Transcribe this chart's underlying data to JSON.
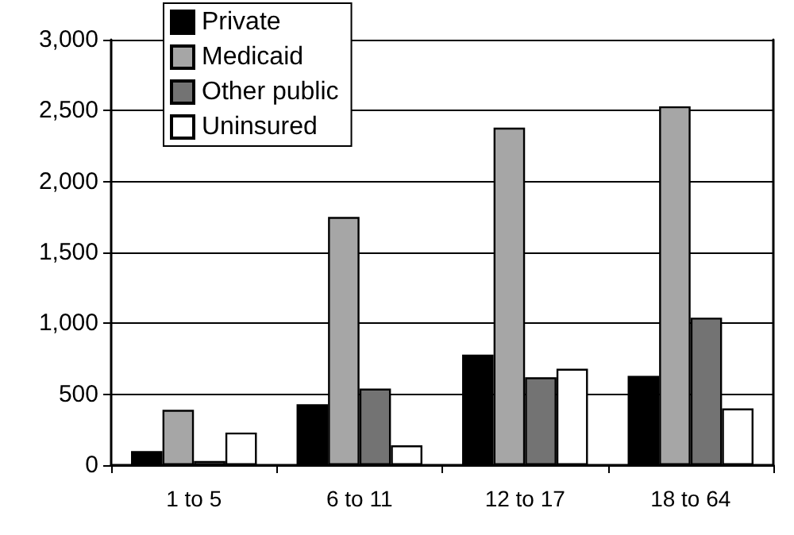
{
  "chart_data": {
    "type": "bar",
    "categories": [
      "1 to 5",
      "6 to 11",
      "12 to 17",
      "18 to 64"
    ],
    "series": [
      {
        "name": "Private",
        "color": "#000000",
        "values": [
          100,
          430,
          780,
          630
        ]
      },
      {
        "name": "Medicaid",
        "color": "#a6a6a6",
        "values": [
          390,
          1750,
          2380,
          2530
        ]
      },
      {
        "name": "Other public",
        "color": "#737373",
        "values": [
          30,
          540,
          620,
          1040
        ]
      },
      {
        "name": "Uninsured",
        "color": "#ffffff",
        "values": [
          230,
          140,
          680,
          400
        ]
      }
    ],
    "ylim": [
      0,
      3000
    ],
    "yticks": [
      0,
      500,
      {
        "value": 1000,
        "label": "1,000"
      },
      {
        "value": 1500,
        "label": "1,500"
      },
      {
        "value": 2000,
        "label": "2,000"
      },
      {
        "value": 2500,
        "label": "2,500"
      },
      {
        "value": 3000,
        "label": "3,000"
      }
    ],
    "grid": "y",
    "legend": "top left"
  }
}
